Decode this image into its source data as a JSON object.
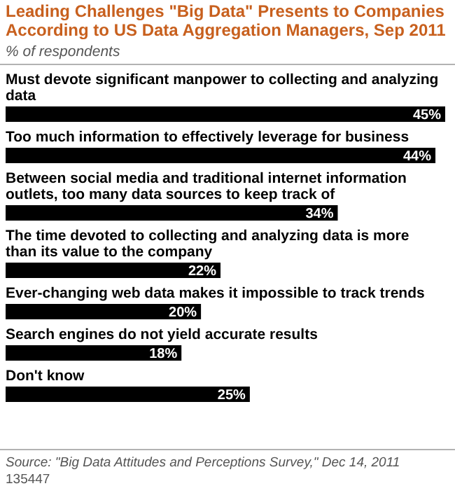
{
  "chart_data": {
    "type": "bar",
    "orientation": "horizontal",
    "title": "Leading Challenges \"Big Data\" Presents to Companies According to US Data Aggregation Managers, Sep 2011",
    "subtitle": "% of respondents",
    "categories": [
      "Must devote significant manpower to collecting and analyzing data",
      "Too much information to effectively leverage for business",
      "Between social media and traditional internet information outlets, too many data sources to keep track of",
      "The time devoted to collecting and analyzing data is more than its value to the company",
      "Ever-changing web data makes it impossible to track trends",
      "Search engines do not yield accurate results",
      "Don't know"
    ],
    "values": [
      45,
      44,
      34,
      22,
      20,
      18,
      25
    ],
    "color": "#000000",
    "value_labels": [
      "45%",
      "44%",
      "34%",
      "22%",
      "20%",
      "18%",
      "25%"
    ],
    "annotations": [
      "Source: \"Big Data Attitudes and Perceptions Survey,\" Dec 14, 2011",
      "135447"
    ]
  }
}
